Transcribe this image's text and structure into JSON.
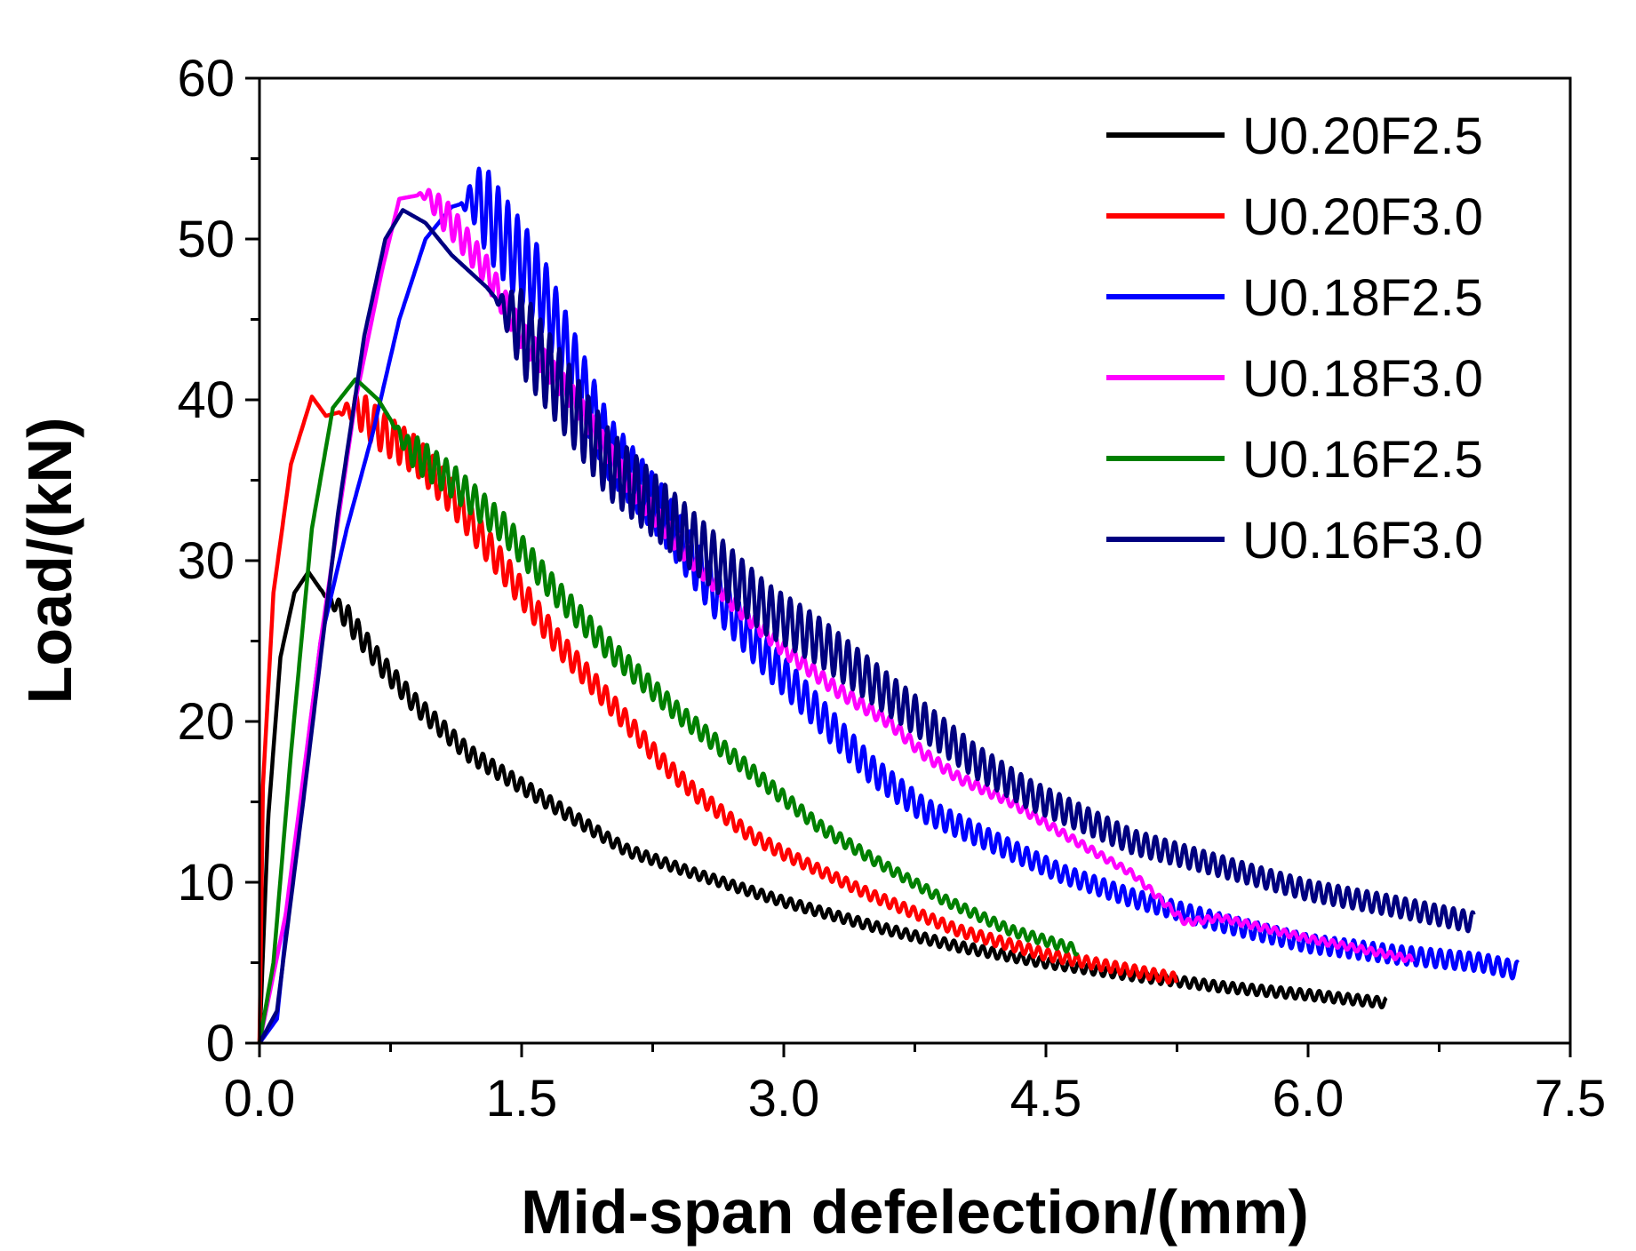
{
  "chart_data": {
    "type": "line",
    "title": "",
    "xlabel": "Mid-span defelection/(mm)",
    "ylabel": "Load/(kN)",
    "xlim": [
      0,
      7.5
    ],
    "ylim": [
      0,
      60
    ],
    "xticks": [
      "0.0",
      "1.5",
      "3.0",
      "4.5",
      "6.0",
      "7.5"
    ],
    "yticks": [
      "0",
      "10",
      "20",
      "30",
      "40",
      "50",
      "60"
    ],
    "legend_position": "top-right",
    "series": [
      {
        "name": "U0.20F2.5",
        "color": "#000000",
        "points": [
          [
            0,
            0
          ],
          [
            0.05,
            14
          ],
          [
            0.12,
            24
          ],
          [
            0.2,
            28
          ],
          [
            0.28,
            29.3
          ],
          [
            0.35,
            28.2
          ],
          [
            0.5,
            26.5
          ],
          [
            0.7,
            23.5
          ],
          [
            0.9,
            21
          ],
          [
            1.2,
            18
          ],
          [
            1.5,
            16
          ],
          [
            1.8,
            14
          ],
          [
            2.1,
            12
          ],
          [
            2.5,
            10.5
          ],
          [
            3.0,
            8.8
          ],
          [
            3.5,
            7.3
          ],
          [
            4.0,
            6.0
          ],
          [
            4.5,
            5.0
          ],
          [
            5.0,
            4.2
          ],
          [
            5.5,
            3.5
          ],
          [
            6.0,
            3.0
          ],
          [
            6.45,
            2.5
          ]
        ],
        "zigzag": {
          "start": 0.35,
          "amplitude": 0.9
        }
      },
      {
        "name": "U0.20F3.0",
        "color": "#ff0000",
        "points": [
          [
            0,
            0
          ],
          [
            0.02,
            16
          ],
          [
            0.08,
            28
          ],
          [
            0.18,
            36
          ],
          [
            0.3,
            40.2
          ],
          [
            0.38,
            39
          ],
          [
            0.55,
            39.5
          ],
          [
            0.7,
            38
          ],
          [
            0.9,
            36.5
          ],
          [
            1.1,
            34
          ],
          [
            1.3,
            31
          ],
          [
            1.5,
            28
          ],
          [
            1.7,
            25
          ],
          [
            1.9,
            22.5
          ],
          [
            2.1,
            20
          ],
          [
            2.3,
            17.5
          ],
          [
            2.5,
            15.5
          ],
          [
            2.8,
            13
          ],
          [
            3.0,
            11.8
          ],
          [
            3.5,
            9.2
          ],
          [
            4.0,
            7.0
          ],
          [
            4.5,
            5.5
          ],
          [
            5.0,
            4.5
          ],
          [
            5.25,
            4.0
          ]
        ],
        "zigzag": {
          "start": 0.45,
          "amplitude": 1.0
        }
      },
      {
        "name": "U0.18F2.5",
        "color": "#0000ff",
        "points": [
          [
            0,
            0
          ],
          [
            0.1,
            1.5
          ],
          [
            0.2,
            12
          ],
          [
            0.35,
            25
          ],
          [
            0.5,
            32
          ],
          [
            0.65,
            38
          ],
          [
            0.8,
            45
          ],
          [
            0.95,
            50
          ],
          [
            1.1,
            52
          ],
          [
            1.25,
            52.5
          ],
          [
            1.4,
            50
          ],
          [
            1.6,
            47
          ],
          [
            1.8,
            42
          ],
          [
            2.0,
            37
          ],
          [
            2.3,
            33
          ],
          [
            2.6,
            28
          ],
          [
            2.9,
            24
          ],
          [
            3.2,
            20.5
          ],
          [
            3.5,
            17
          ],
          [
            3.8,
            14.5
          ],
          [
            4.2,
            12.5
          ],
          [
            4.6,
            10.5
          ],
          [
            5.0,
            9
          ],
          [
            5.5,
            7.5
          ],
          [
            6.0,
            6.2
          ],
          [
            6.5,
            5.5
          ],
          [
            7.0,
            5.0
          ],
          [
            7.2,
            4.5
          ]
        ],
        "zigzag": {
          "start": 1.15,
          "amplitude": 1.6
        }
      },
      {
        "name": "U0.18F3.0",
        "color": "#ff00ff",
        "points": [
          [
            0,
            0
          ],
          [
            0.15,
            8
          ],
          [
            0.35,
            25
          ],
          [
            0.55,
            40
          ],
          [
            0.7,
            48
          ],
          [
            0.8,
            52.5
          ],
          [
            0.95,
            52.8
          ],
          [
            1.1,
            51
          ],
          [
            1.3,
            48
          ],
          [
            1.5,
            44
          ],
          [
            1.8,
            40
          ],
          [
            2.1,
            35
          ],
          [
            2.4,
            31
          ],
          [
            2.7,
            27.5
          ],
          [
            3.0,
            24.5
          ],
          [
            3.3,
            22
          ],
          [
            3.6,
            20
          ],
          [
            3.8,
            18
          ],
          [
            4.0,
            16.5
          ],
          [
            4.3,
            15
          ],
          [
            4.6,
            13
          ],
          [
            5.0,
            10.5
          ],
          [
            5.3,
            7.5
          ],
          [
            5.5,
            7.8
          ],
          [
            6.0,
            6.5
          ],
          [
            6.6,
            5.2
          ]
        ],
        "zigzag": {
          "start": 0.9,
          "amplitude": 0.6
        }
      },
      {
        "name": "U0.16F2.5",
        "color": "#008000",
        "points": [
          [
            0,
            0
          ],
          [
            0.08,
            5
          ],
          [
            0.18,
            18
          ],
          [
            0.3,
            32
          ],
          [
            0.42,
            39.5
          ],
          [
            0.55,
            41.3
          ],
          [
            0.68,
            40
          ],
          [
            0.85,
            37
          ],
          [
            1.1,
            35
          ],
          [
            1.4,
            32
          ],
          [
            1.7,
            28
          ],
          [
            2.0,
            24.5
          ],
          [
            2.4,
            20.5
          ],
          [
            2.8,
            17
          ],
          [
            3.2,
            13.5
          ],
          [
            3.5,
            11.5
          ],
          [
            3.9,
            9
          ],
          [
            4.3,
            7
          ],
          [
            4.68,
            5.8
          ]
        ],
        "zigzag": {
          "start": 0.75,
          "amplitude": 0.9
        }
      },
      {
        "name": "U0.16F3.0",
        "color": "#000080",
        "points": [
          [
            0,
            0
          ],
          [
            0.1,
            2
          ],
          [
            0.25,
            15
          ],
          [
            0.45,
            33
          ],
          [
            0.6,
            44
          ],
          [
            0.72,
            50
          ],
          [
            0.82,
            51.8
          ],
          [
            0.95,
            51
          ],
          [
            1.1,
            49
          ],
          [
            1.3,
            47
          ],
          [
            1.45,
            45
          ],
          [
            1.7,
            41
          ],
          [
            2.0,
            36
          ],
          [
            2.3,
            33
          ],
          [
            2.6,
            30
          ],
          [
            2.9,
            27
          ],
          [
            3.2,
            25
          ],
          [
            3.5,
            22.5
          ],
          [
            3.8,
            20
          ],
          [
            4.1,
            17.5
          ],
          [
            4.4,
            15.5
          ],
          [
            4.7,
            14
          ],
          [
            5.0,
            12.5
          ],
          [
            5.5,
            11
          ],
          [
            6.0,
            9.5
          ],
          [
            6.5,
            8.5
          ],
          [
            6.95,
            7.5
          ]
        ],
        "zigzag": {
          "start": 1.35,
          "amplitude": 1.8
        }
      }
    ]
  }
}
